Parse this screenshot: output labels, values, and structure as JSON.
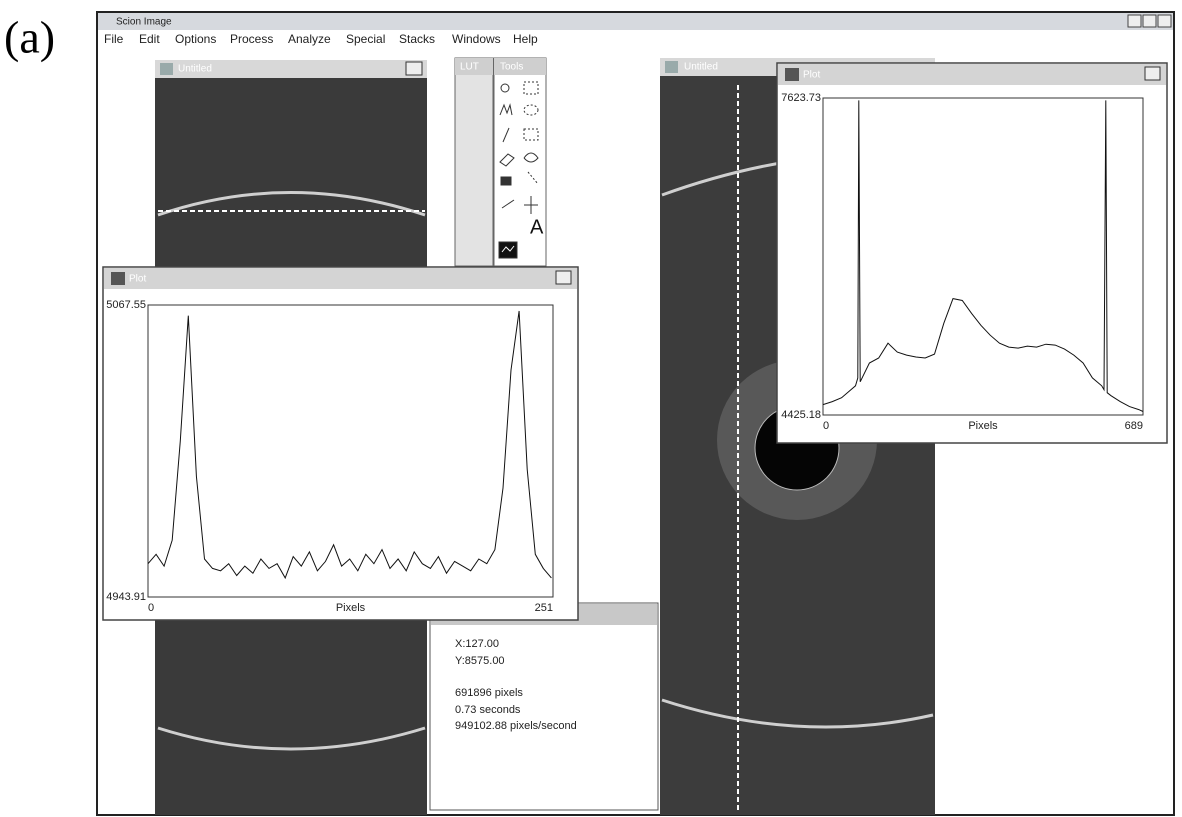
{
  "figure_label": "(a)",
  "app": {
    "title": "Scion Image",
    "menu": [
      "File",
      "Edit",
      "Options",
      "Process",
      "Analyze",
      "Special",
      "Stacks",
      "Windows",
      "Help"
    ]
  },
  "windows": {
    "left_image": "Untitled",
    "lut": "LUT",
    "tools": "Tools",
    "right_image": "Untitled",
    "tool_text": "A"
  },
  "info": {
    "x": "X:127.00",
    "y": "Y:8575.00",
    "pixels": "691896 pixels",
    "seconds": "0.73 seconds",
    "rate": "949102.88 pixels/second"
  },
  "chart_data": [
    {
      "type": "line",
      "title": "Plot",
      "xlabel": "Pixels",
      "color": "#111111",
      "xlim": [
        0,
        251
      ],
      "xticks": [
        0,
        251
      ],
      "ylim": [
        4943.91,
        5067.55
      ],
      "yticks": [
        4943.91,
        5067.55
      ],
      "x": [
        0,
        5,
        10,
        15,
        20,
        25,
        30,
        35,
        40,
        45,
        50,
        55,
        60,
        65,
        70,
        75,
        80,
        85,
        90,
        95,
        100,
        105,
        110,
        115,
        120,
        125,
        130,
        135,
        140,
        145,
        150,
        155,
        160,
        165,
        170,
        175,
        180,
        185,
        190,
        195,
        200,
        205,
        210,
        215,
        220,
        225,
        230,
        235,
        240,
        245,
        250
      ],
      "values": [
        4958,
        4962,
        4957,
        4968,
        5010,
        5063,
        4995,
        4960,
        4956,
        4955,
        4958,
        4953,
        4957,
        4954,
        4960,
        4956,
        4958,
        4952,
        4961,
        4957,
        4963,
        4955,
        4959,
        4966,
        4957,
        4960,
        4955,
        4962,
        4958,
        4964,
        4956,
        4960,
        4955,
        4963,
        4958,
        4956,
        4961,
        4954,
        4959,
        4957,
        4955,
        4960,
        4958,
        4964,
        4990,
        5040,
        5065,
        4998,
        4962,
        4956,
        4952
      ]
    },
    {
      "type": "line",
      "title": "Plot",
      "xlabel": "Pixels",
      "color": "#111111",
      "xlim": [
        0,
        689
      ],
      "xticks": [
        0,
        689
      ],
      "ylim": [
        4425.18,
        7623.73
      ],
      "yticks": [
        4425.18,
        7623.73
      ],
      "x": [
        0,
        20,
        40,
        60,
        70,
        75,
        77,
        80,
        100,
        120,
        140,
        160,
        180,
        200,
        220,
        240,
        260,
        280,
        300,
        320,
        340,
        360,
        380,
        400,
        420,
        440,
        460,
        480,
        500,
        520,
        540,
        560,
        580,
        600,
        605,
        609,
        612,
        620,
        640,
        660,
        680,
        689
      ],
      "values": [
        4530,
        4560,
        4600,
        4680,
        4720,
        4800,
        7600,
        4760,
        4950,
        5000,
        5150,
        5060,
        5030,
        5010,
        5000,
        5040,
        5350,
        5600,
        5580,
        5450,
        5330,
        5230,
        5150,
        5110,
        5100,
        5120,
        5110,
        5140,
        5130,
        5090,
        5030,
        4950,
        4800,
        4720,
        4680,
        7600,
        4650,
        4620,
        4560,
        4510,
        4480,
        4460
      ]
    }
  ]
}
